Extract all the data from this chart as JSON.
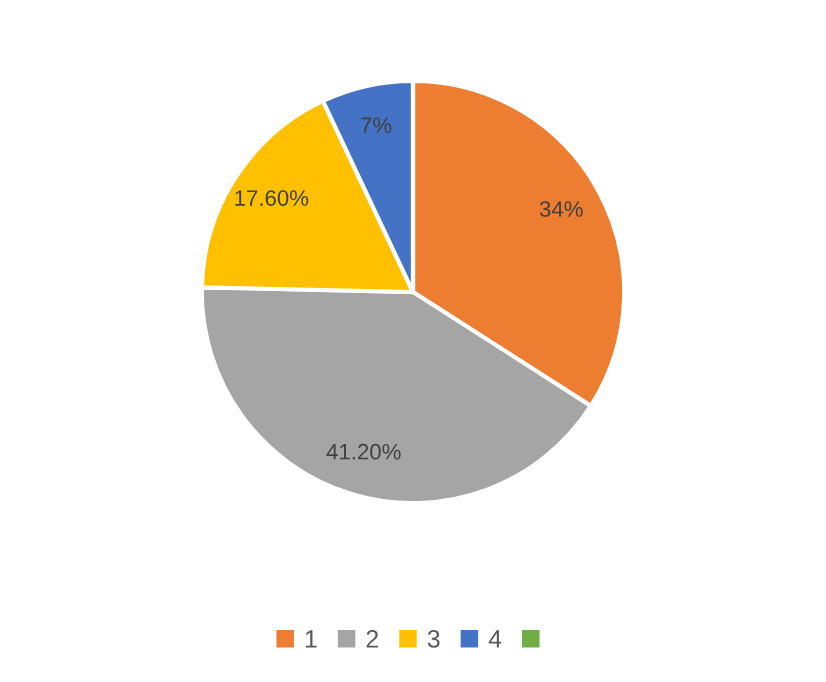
{
  "chart_data": {
    "type": "pie",
    "categories": [
      "1",
      "2",
      "3",
      "4",
      null
    ],
    "values": [
      34,
      41.2,
      17.6,
      7,
      0
    ],
    "colors": [
      "#ed7d31",
      "#a5a5a5",
      "#ffc000",
      "#4472c4",
      "#70ad47"
    ],
    "value_labels": [
      "34%",
      "41.20%",
      "17.60%",
      "7%",
      null
    ],
    "legend": "bottom"
  }
}
